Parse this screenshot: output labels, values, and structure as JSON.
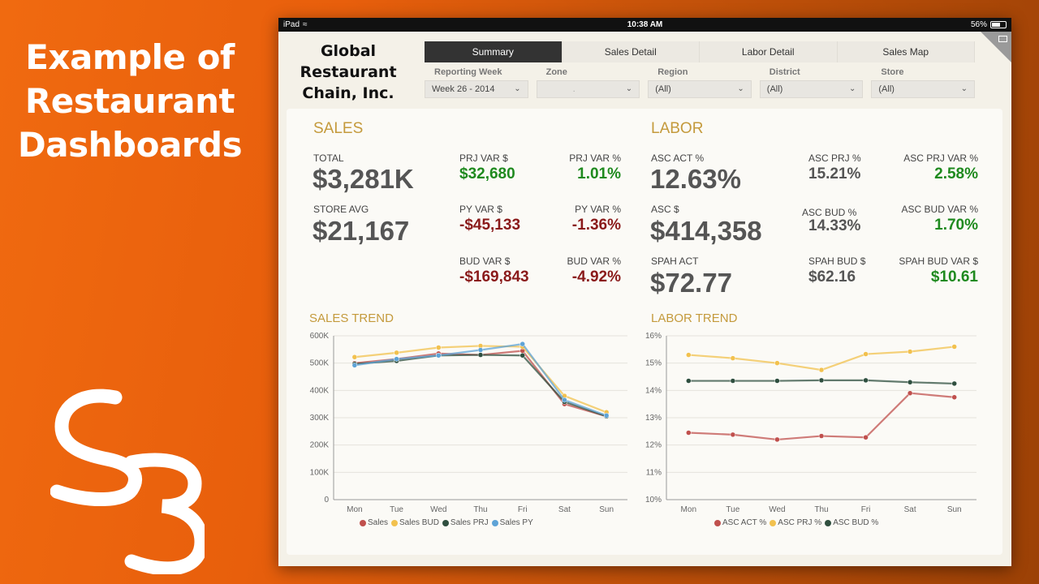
{
  "headline": "Example of Restaurant Dashboards",
  "statusbar": {
    "device": "iPad",
    "time": "10:38 AM",
    "battery": "56%"
  },
  "company": "Global Restaurant Chain, Inc.",
  "tabs": [
    "Summary",
    "Sales Detail",
    "Labor Detail",
    "Sales Map"
  ],
  "filters": [
    {
      "label": "Reporting Week",
      "value": "Week 26 - 2014"
    },
    {
      "label": "Zone",
      "value": "."
    },
    {
      "label": "Region",
      "value": "(All)"
    },
    {
      "label": "District",
      "value": "(All)"
    },
    {
      "label": "Store",
      "value": "(All)"
    }
  ],
  "sales": {
    "title": "SALES",
    "total_label": "TOTAL",
    "total": "$3,281K",
    "store_avg_label": "STORE AVG",
    "store_avg": "$21,167",
    "prj_var_d_label": "PRJ VAR $",
    "prj_var_d": "$32,680",
    "prj_var_p_label": "PRJ VAR %",
    "prj_var_p": "1.01%",
    "py_var_d_label": "PY VAR $",
    "py_var_d": "-$45,133",
    "py_var_p_label": "PY VAR %",
    "py_var_p": "-1.36%",
    "bud_var_d_label": "BUD VAR $",
    "bud_var_d": "-$169,843",
    "bud_var_p_label": "BUD VAR %",
    "bud_var_p": "-4.92%"
  },
  "labor": {
    "title": "LABOR",
    "asc_act_p_label": "ASC ACT %",
    "asc_act_p": "12.63%",
    "asc_d_label": "ASC $",
    "asc_d": "$414,358",
    "spah_act_label": "SPAH ACT",
    "spah_act": "$72.77",
    "asc_prj_label": "ASC PRJ %",
    "asc_prj": "15.21%",
    "asc_bud_label": "ASC BUD %",
    "asc_bud": "14.33%",
    "spah_bud_label": "SPAH BUD $",
    "spah_bud": "$62.16",
    "asc_prj_var_label": "ASC PRJ VAR %",
    "asc_prj_var": "2.58%",
    "asc_bud_var_label": "ASC BUD VAR %",
    "asc_bud_var": "1.70%",
    "spah_bud_var_label": "SPAH BUD VAR $",
    "spah_bud_var": "$10.61"
  },
  "chart_data": [
    {
      "type": "line",
      "title": "SALES TREND",
      "categories": [
        "Mon",
        "Tue",
        "Wed",
        "Thu",
        "Fri",
        "Sat",
        "Sun"
      ],
      "ylim": [
        0,
        600000
      ],
      "yticks": [
        0,
        100000,
        200000,
        300000,
        400000,
        500000,
        600000
      ],
      "ytick_labels": [
        "0",
        "100K",
        "200K",
        "300K",
        "400K",
        "500K",
        "600K"
      ],
      "series": [
        {
          "name": "Sales",
          "color": "#c0504d",
          "values": [
            500000,
            515000,
            535000,
            530000,
            545000,
            350000,
            305000
          ]
        },
        {
          "name": "Sales BUD",
          "color": "#f2c14e",
          "values": [
            522000,
            538000,
            557000,
            563000,
            560000,
            380000,
            320000
          ]
        },
        {
          "name": "Sales PRJ",
          "color": "#2f4f3f",
          "values": [
            497000,
            508000,
            528000,
            530000,
            528000,
            358000,
            305000
          ]
        },
        {
          "name": "Sales PY",
          "color": "#5ea3d6",
          "values": [
            492000,
            515000,
            528000,
            548000,
            570000,
            365000,
            308000
          ]
        }
      ]
    },
    {
      "type": "line",
      "title": "LABOR TREND",
      "categories": [
        "Mon",
        "Tue",
        "Wed",
        "Thu",
        "Fri",
        "Sat",
        "Sun"
      ],
      "ylim": [
        10,
        16
      ],
      "yticks": [
        10,
        11,
        12,
        13,
        14,
        15,
        16
      ],
      "ytick_labels": [
        "10%",
        "11%",
        "12%",
        "13%",
        "14%",
        "15%",
        "16%"
      ],
      "series": [
        {
          "name": "ASC ACT %",
          "color": "#c0504d",
          "values": [
            12.45,
            12.38,
            12.2,
            12.33,
            12.28,
            13.9,
            13.75
          ]
        },
        {
          "name": "ASC PRJ %",
          "color": "#f2c14e",
          "values": [
            15.3,
            15.18,
            15.0,
            14.75,
            15.33,
            15.42,
            15.6
          ]
        },
        {
          "name": "ASC BUD %",
          "color": "#2f4f3f",
          "values": [
            14.35,
            14.35,
            14.35,
            14.37,
            14.37,
            14.3,
            14.25
          ]
        }
      ]
    }
  ]
}
